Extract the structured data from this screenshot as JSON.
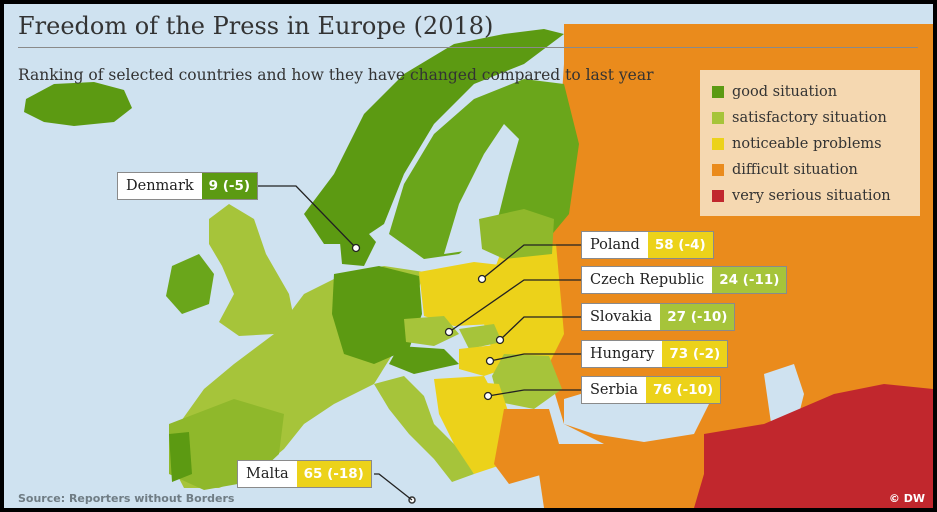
{
  "header": {
    "title": "Freedom of the Press in Europe (2018)",
    "subtitle": "Ranking of selected countries and how they have changed compared to last year"
  },
  "legend": {
    "items": [
      {
        "label": "good situation",
        "color": "#5c9a12"
      },
      {
        "label": "satisfactory situation",
        "color": "#a6c43a"
      },
      {
        "label": "noticeable problems",
        "color": "#ecd21a"
      },
      {
        "label": "difficult situation",
        "color": "#ea8b1c"
      },
      {
        "label": "very serious situation",
        "color": "#c1272d"
      }
    ]
  },
  "callouts": [
    {
      "country": "Denmark",
      "score": "9 (-5)",
      "color": "#5c9a12"
    },
    {
      "country": "Poland",
      "score": "58 (-4)",
      "color": "#ecd21a"
    },
    {
      "country": "Czech Republic",
      "score": "24 (-11)",
      "color": "#a6c43a"
    },
    {
      "country": "Slovakia",
      "score": "27 (-10)",
      "color": "#a6c43a"
    },
    {
      "country": "Hungary",
      "score": "73 (-2)",
      "color": "#ecd21a"
    },
    {
      "country": "Serbia",
      "score": "76 (-10)",
      "color": "#ecd21a"
    },
    {
      "country": "Malta",
      "score": "65 (-18)",
      "color": "#ecd21a"
    }
  ],
  "footer": {
    "source": "Source: Reporters without Borders",
    "brand": "© DW"
  }
}
